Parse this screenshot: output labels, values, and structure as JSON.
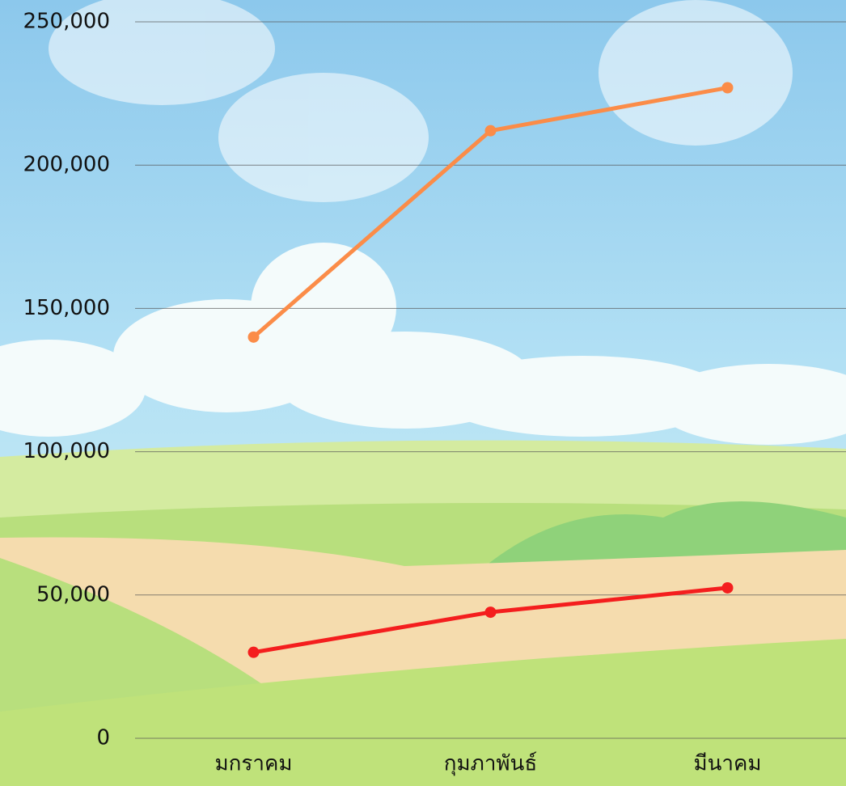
{
  "chart_data": {
    "type": "line",
    "categories": [
      "มกราคม",
      "กุมภาพันธ์",
      "มีนาคม"
    ],
    "series": [
      {
        "color": "#fb8c48",
        "values": [
          140000,
          212000,
          227000
        ]
      },
      {
        "color": "#f41e1e",
        "values": [
          30000,
          44000,
          52500
        ]
      }
    ],
    "ylim": [
      0,
      250000
    ],
    "yticks": [
      0,
      {
        "value": 50000,
        "label": "50,000"
      },
      {
        "value": 100000,
        "label": "100,000"
      },
      {
        "value": 150000,
        "label": "150,000"
      },
      {
        "value": 200000,
        "label": "200,000"
      },
      {
        "value": 250000,
        "label": "250,000"
      }
    ],
    "grid": true
  }
}
